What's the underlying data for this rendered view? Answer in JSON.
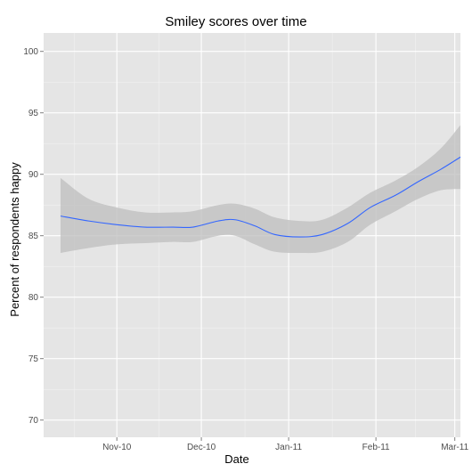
{
  "chart_data": {
    "type": "line",
    "title": "Smiley scores over time",
    "xlabel": "Date",
    "ylabel": "Percent of respondents happy",
    "x_type": "date",
    "xlim": [
      "2010-10-06",
      "2011-03-03"
    ],
    "ylim": [
      68.6,
      101.5
    ],
    "x_ticks": [
      {
        "date": "2010-11-01",
        "label": "Nov-10"
      },
      {
        "date": "2010-12-01",
        "label": "Dec-10"
      },
      {
        "date": "2011-01-01",
        "label": "Jan-11"
      },
      {
        "date": "2011-02-01",
        "label": "Feb-11"
      },
      {
        "date": "2011-03-01",
        "label": "Mar-11"
      }
    ],
    "y_ticks": [
      70,
      75,
      80,
      85,
      90,
      95,
      100
    ],
    "grid": true,
    "colors": {
      "panel": "#e5e5e5",
      "grid_major": "#ffffff",
      "grid_minor": "#f2f2f2",
      "line": "#3366ff",
      "ribbon": "#bdbdbd"
    },
    "series": [
      {
        "type": "smooth",
        "points": [
          {
            "x": "2010-10-12",
            "y": 86.6,
            "ymin": 83.6,
            "ymax": 89.7
          },
          {
            "x": "2010-10-22",
            "y": 86.2,
            "ymin": 84.0,
            "ymax": 88.0
          },
          {
            "x": "2010-11-01",
            "y": 85.9,
            "ymin": 84.3,
            "ymax": 87.3
          },
          {
            "x": "2010-11-11",
            "y": 85.7,
            "ymin": 84.4,
            "ymax": 86.9
          },
          {
            "x": "2010-11-21",
            "y": 85.7,
            "ymin": 84.5,
            "ymax": 86.9
          },
          {
            "x": "2010-11-28",
            "y": 85.7,
            "ymin": 84.5,
            "ymax": 87.0
          },
          {
            "x": "2010-12-07",
            "y": 86.2,
            "ymin": 85.0,
            "ymax": 87.5
          },
          {
            "x": "2010-12-13",
            "y": 86.3,
            "ymin": 85.0,
            "ymax": 87.6
          },
          {
            "x": "2010-12-20",
            "y": 85.8,
            "ymin": 84.3,
            "ymax": 87.2
          },
          {
            "x": "2010-12-27",
            "y": 85.1,
            "ymin": 83.7,
            "ymax": 86.5
          },
          {
            "x": "2011-01-05",
            "y": 84.9,
            "ymin": 83.6,
            "ymax": 86.2
          },
          {
            "x": "2011-01-13",
            "y": 85.1,
            "ymin": 83.7,
            "ymax": 86.3
          },
          {
            "x": "2011-01-22",
            "y": 86.0,
            "ymin": 84.5,
            "ymax": 87.3
          },
          {
            "x": "2011-01-30",
            "y": 87.3,
            "ymin": 85.9,
            "ymax": 88.5
          },
          {
            "x": "2011-02-08",
            "y": 88.3,
            "ymin": 87.0,
            "ymax": 89.5
          },
          {
            "x": "2011-02-16",
            "y": 89.4,
            "ymin": 88.0,
            "ymax": 90.6
          },
          {
            "x": "2011-02-24",
            "y": 90.4,
            "ymin": 88.7,
            "ymax": 92.1
          },
          {
            "x": "2011-03-03",
            "y": 91.4,
            "ymin": 88.8,
            "ymax": 94.0
          }
        ]
      }
    ]
  }
}
